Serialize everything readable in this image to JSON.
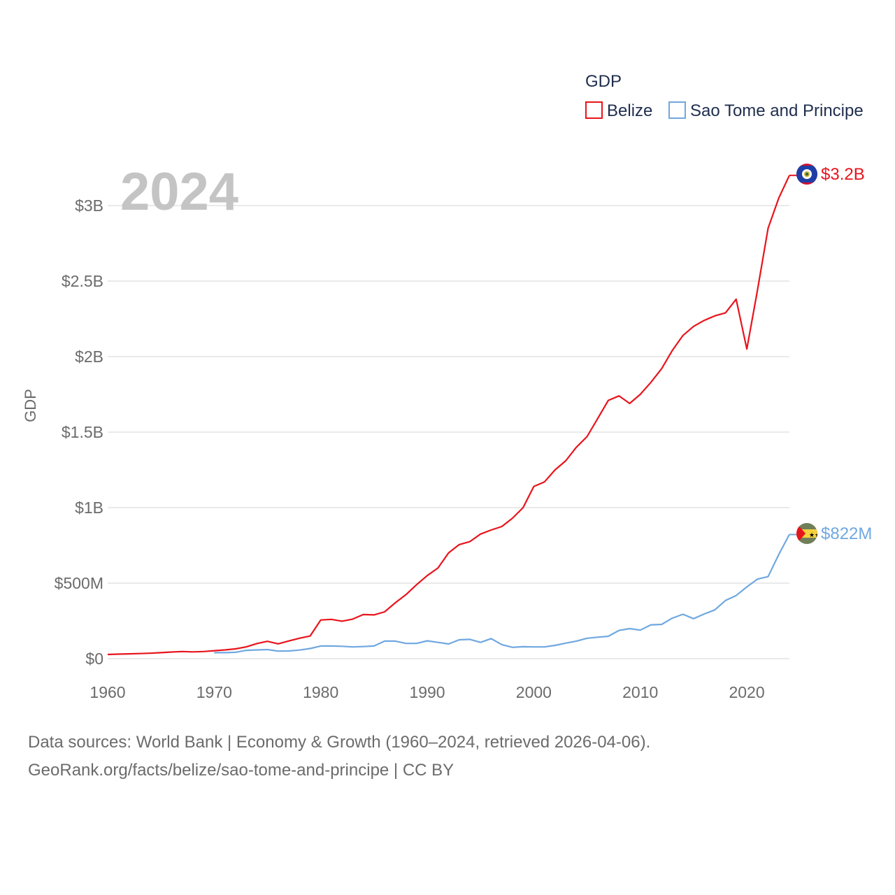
{
  "chart_data": {
    "type": "line",
    "title": "GDP",
    "ylabel": "GDP",
    "xlabel": "",
    "current_year_label": "2024",
    "xlim": [
      1960,
      2024
    ],
    "ylim": [
      0,
      3300000000
    ],
    "x_ticks": [
      1960,
      1970,
      1980,
      1990,
      2000,
      2010,
      2020
    ],
    "y_ticks": [
      {
        "value": 0,
        "label": "$0"
      },
      {
        "value": 500000000,
        "label": "$500M"
      },
      {
        "value": 1000000000,
        "label": "$1B"
      },
      {
        "value": 1500000000,
        "label": "$1.5B"
      },
      {
        "value": 2000000000,
        "label": "$2B"
      },
      {
        "value": 2500000000,
        "label": "$2.5B"
      },
      {
        "value": 3000000000,
        "label": "$3B"
      }
    ],
    "legend_title": "GDP",
    "legend_position": "top-right",
    "series": [
      {
        "name": "Belize",
        "color": "#e8141c",
        "end_label": "$3.2B",
        "flag_icon": "belize-flag-icon",
        "start_year": 1960,
        "values": [
          28000000,
          30000000,
          32000000,
          34000000,
          36000000,
          40000000,
          44000000,
          47000000,
          45000000,
          47000000,
          53000000,
          58000000,
          65000000,
          78000000,
          100000000,
          115000000,
          98000000,
          117000000,
          135000000,
          150000000,
          256000000,
          260000000,
          248000000,
          262000000,
          292000000,
          290000000,
          310000000,
          370000000,
          424000000,
          490000000,
          550000000,
          600000000,
          700000000,
          755000000,
          775000000,
          825000000,
          852000000,
          875000000,
          930000000,
          1000000000,
          1140000000,
          1170000000,
          1250000000,
          1310000000,
          1400000000,
          1470000000,
          1590000000,
          1710000000,
          1740000000,
          1690000000,
          1750000000,
          1830000000,
          1920000000,
          2040000000,
          2140000000,
          2200000000,
          2240000000,
          2270000000,
          2290000000,
          2380000000,
          2050000000,
          2440000000,
          2850000000,
          3050000000,
          3200000000
        ]
      },
      {
        "name": "Sao Tome and Principe",
        "color": "#70a8e0",
        "end_label": "$822M",
        "flag_icon": "sao-tome-flag-icon",
        "start_year": 1970,
        "values": [
          40000000,
          40000000,
          42000000,
          55000000,
          58000000,
          60000000,
          50000000,
          51000000,
          57000000,
          67000000,
          84000000,
          84000000,
          82000000,
          78000000,
          80000000,
          84000000,
          116000000,
          116000000,
          101000000,
          101000000,
          118000000,
          108000000,
          97000000,
          125000000,
          128000000,
          108000000,
          133000000,
          93000000,
          75000000,
          79000000,
          78000000,
          78000000,
          88000000,
          103000000,
          116000000,
          135000000,
          142000000,
          148000000,
          187000000,
          199000000,
          189000000,
          224000000,
          227000000,
          268000000,
          294000000,
          265000000,
          296000000,
          323000000,
          385000000,
          418000000,
          475000000,
          527000000,
          543000000,
          690000000,
          822000000
        ]
      }
    ]
  },
  "footer": {
    "line1": "Data sources: World Bank | Economy & Growth (1960–2024, retrieved 2026-04-06).",
    "line2": "GeoRank.org/facts/belize/sao-tome-and-principe | CC BY"
  }
}
